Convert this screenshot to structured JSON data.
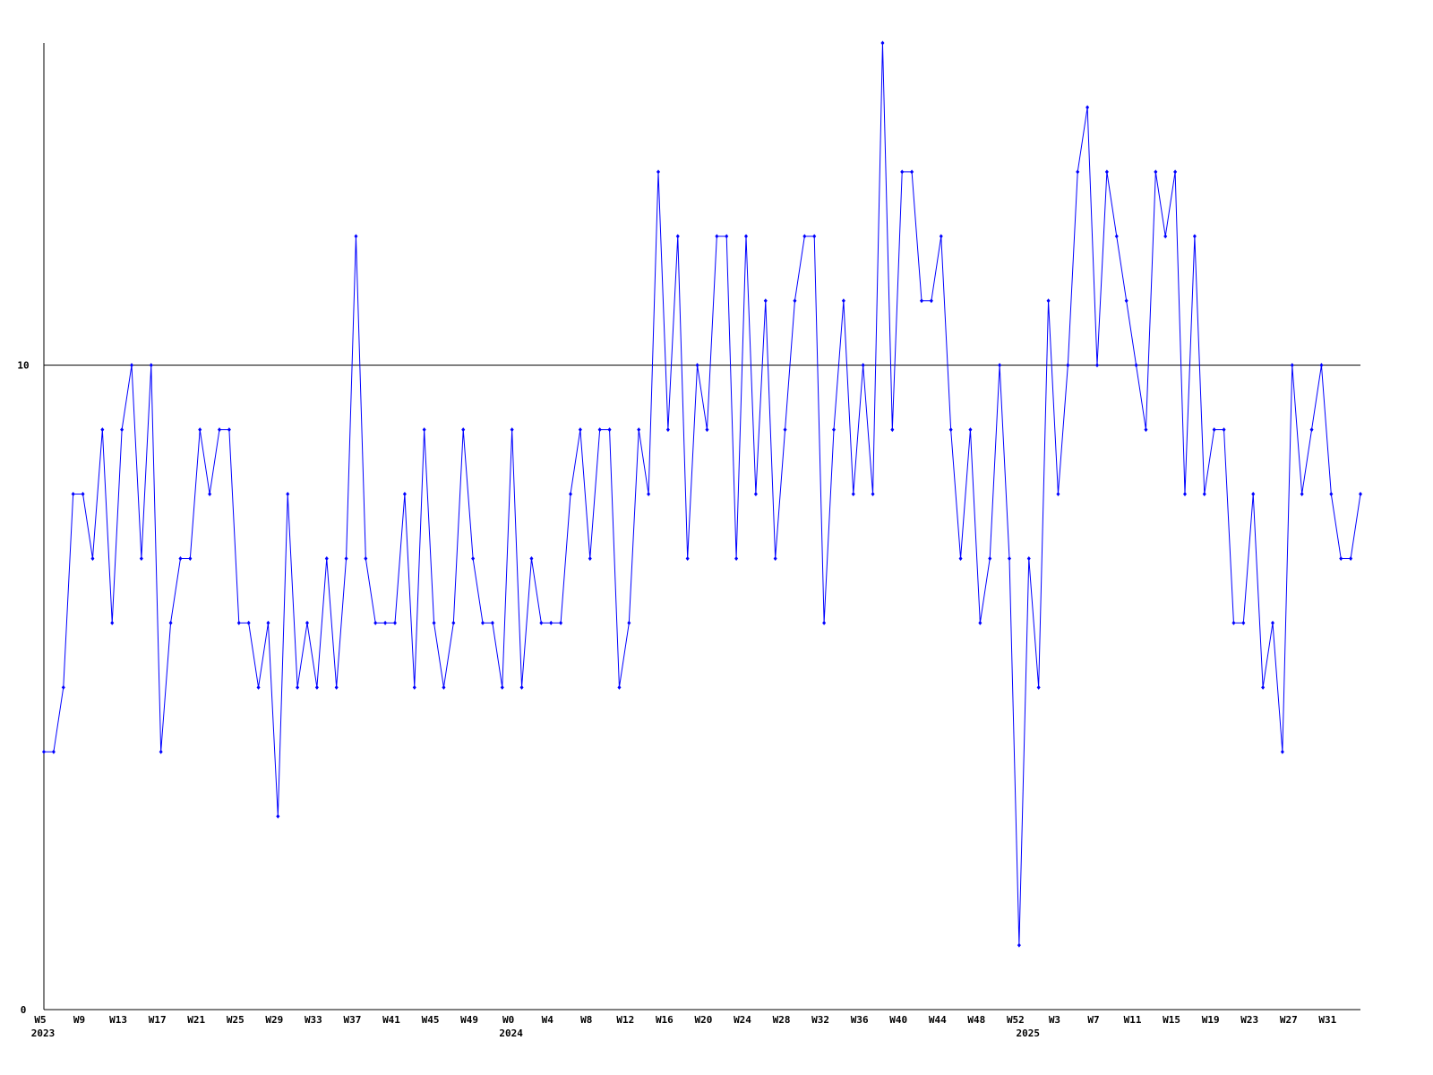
{
  "chart_data": {
    "type": "line",
    "color": "#0000ff",
    "grid": true,
    "ylim": [
      0,
      15
    ],
    "yticks": [
      0,
      10
    ],
    "categories": [
      "W5",
      null,
      null,
      null,
      "W9",
      null,
      null,
      null,
      "W13",
      null,
      null,
      null,
      "W17",
      null,
      null,
      null,
      "W21",
      null,
      null,
      null,
      "W25",
      null,
      null,
      null,
      "W29",
      null,
      null,
      null,
      "W33",
      null,
      null,
      null,
      "W37",
      null,
      null,
      null,
      "W41",
      null,
      null,
      null,
      "W45",
      null,
      null,
      null,
      "W49",
      null,
      null,
      null,
      "W0",
      null,
      null,
      null,
      "W4",
      null,
      null,
      null,
      "W8",
      null,
      null,
      null,
      "W12",
      null,
      null,
      null,
      "W16",
      null,
      null,
      null,
      "W20",
      null,
      null,
      null,
      "W24",
      null,
      null,
      null,
      "W28",
      null,
      null,
      null,
      "W32",
      null,
      null,
      null,
      "W36",
      null,
      null,
      null,
      "W40",
      null,
      null,
      null,
      "W44",
      null,
      null,
      null,
      "W48",
      null,
      null,
      null,
      "W52",
      null,
      null,
      null,
      "W3",
      null,
      null,
      null,
      "W7",
      null,
      null,
      null,
      "W11",
      null,
      null,
      null,
      "W15",
      null,
      null,
      null,
      "W19",
      null,
      null,
      null,
      "W23",
      null,
      null,
      null,
      "W27",
      null,
      null,
      null,
      "W31",
      null,
      null,
      null
    ],
    "year_labels": [
      "2023",
      null,
      null,
      null,
      null,
      null,
      null,
      null,
      null,
      null,
      null,
      null,
      null,
      null,
      null,
      null,
      null,
      null,
      null,
      null,
      null,
      null,
      null,
      null,
      null,
      null,
      null,
      null,
      null,
      null,
      null,
      null,
      null,
      null,
      null,
      null,
      null,
      null,
      null,
      null,
      null,
      null,
      null,
      null,
      null,
      null,
      null,
      null,
      "2024",
      null,
      null,
      null,
      null,
      null,
      null,
      null,
      null,
      null,
      null,
      null,
      null,
      null,
      null,
      null,
      null,
      null,
      null,
      null,
      null,
      null,
      null,
      null,
      null,
      null,
      null,
      null,
      null,
      null,
      null,
      null,
      null,
      null,
      null,
      null,
      null,
      null,
      null,
      null,
      null,
      null,
      null,
      null,
      null,
      null,
      null,
      null,
      null,
      null,
      null,
      null,
      null,
      "2025",
      null,
      null,
      null,
      null,
      null,
      null,
      null,
      null,
      null,
      null,
      null,
      null,
      null,
      null,
      null,
      null,
      null,
      null,
      null,
      null,
      null,
      null,
      null,
      null,
      null,
      null,
      null,
      null,
      null,
      null,
      null,
      null,
      null,
      null
    ],
    "values": [
      4,
      4,
      5,
      8,
      8,
      7,
      9,
      6,
      9,
      10,
      7,
      10,
      4,
      6,
      7,
      7,
      9,
      8,
      9,
      9,
      6,
      6,
      5,
      6,
      3,
      8,
      5,
      6,
      5,
      7,
      5,
      7,
      12,
      7,
      6,
      6,
      6,
      8,
      5,
      9,
      6,
      5,
      6,
      9,
      7,
      6,
      6,
      5,
      9,
      5,
      7,
      6,
      6,
      6,
      8,
      9,
      7,
      9,
      9,
      5,
      6,
      9,
      8,
      13,
      9,
      12,
      7,
      10,
      9,
      12,
      12,
      7,
      12,
      8,
      11,
      7,
      9,
      11,
      12,
      12,
      6,
      9,
      11,
      8,
      10,
      8,
      15,
      9,
      13,
      13,
      11,
      11,
      12,
      9,
      7,
      9,
      6,
      7,
      10,
      7,
      1,
      7,
      5,
      11,
      8,
      10,
      13,
      14,
      10,
      13,
      12,
      11,
      10,
      9,
      13,
      12,
      13,
      8,
      12,
      8,
      9,
      9,
      6,
      6,
      8,
      5,
      6,
      4,
      10,
      8,
      9,
      10,
      8,
      7,
      7,
      8
    ]
  }
}
